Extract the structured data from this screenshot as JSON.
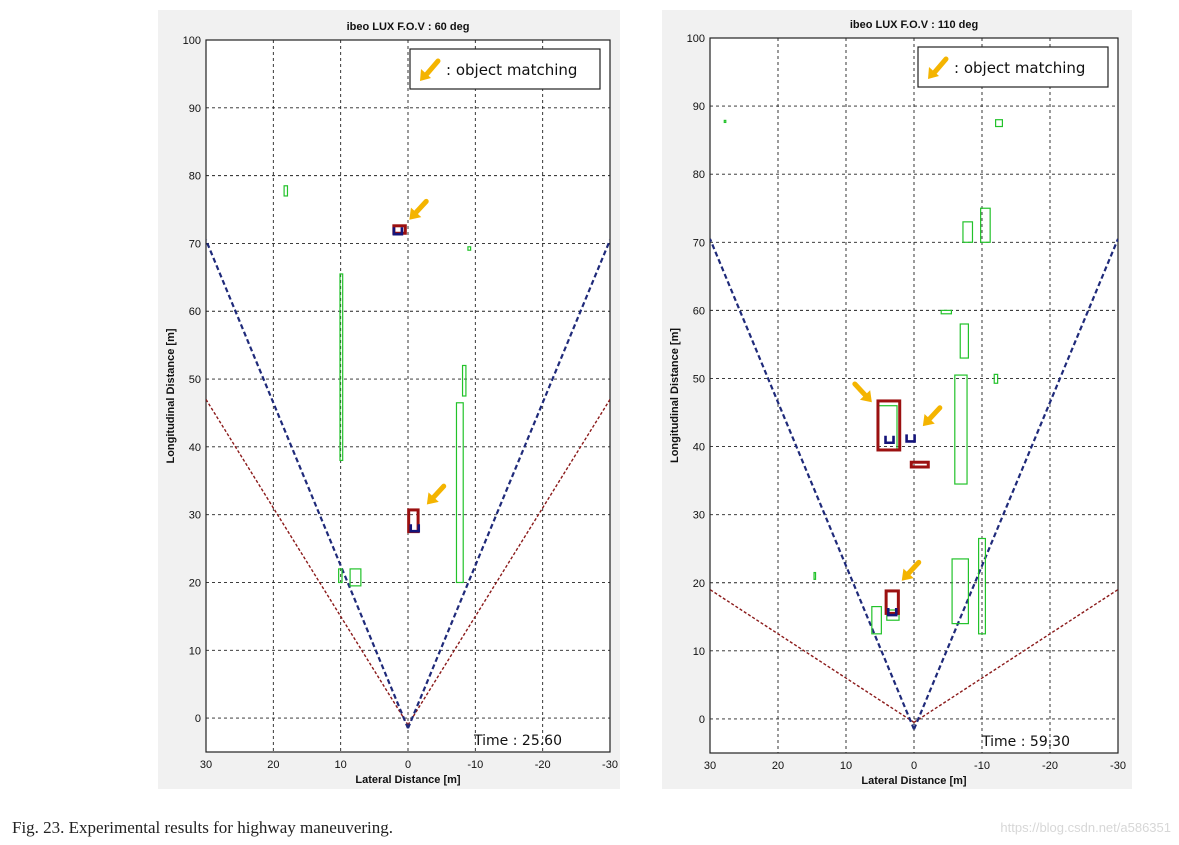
{
  "figure": {
    "caption": "Fig. 23.  Experimental results for highway maneuvering.",
    "watermark": "https://blog.csdn.net/a586351"
  },
  "colors": {
    "grid": "#222222",
    "fov_boundary": "#1f2a7a",
    "sensor_fov": "#8b1a1a",
    "raw_object": "#22c22a",
    "tracked_object": "#9b1010",
    "ego_marker": "#14147a",
    "arrow": "#f4b400",
    "magenta": "#b05cc8"
  },
  "chart_data": [
    {
      "type": "scatter",
      "title": "ibeo LUX F.O.V : 60 deg",
      "xlabel": "Lateral Distance [m]",
      "ylabel": "Longitudinal Distance [m]",
      "xlim": [
        30,
        -30
      ],
      "ylim": [
        -5,
        100
      ],
      "xticks": [
        30,
        20,
        10,
        0,
        -10,
        -20,
        -30
      ],
      "yticks": [
        0,
        10,
        20,
        30,
        40,
        50,
        60,
        70,
        80,
        90,
        100
      ],
      "grid": true,
      "legend": {
        "text": ": object matching",
        "placement": "top-right"
      },
      "time_label": "Time : 25.60",
      "sensor_fov_deg": 60,
      "fov_boundary_lines": [
        {
          "name": "left-boundary",
          "points": [
            [
              0,
              -1.5
            ],
            [
              30,
              70.5
            ]
          ]
        },
        {
          "name": "right-boundary",
          "points": [
            [
              0,
              -1.5
            ],
            [
              -30,
              70.5
            ]
          ]
        }
      ],
      "sensor_fov_lines": [
        {
          "name": "left-fov",
          "points": [
            [
              0,
              -1
            ],
            [
              30,
              47
            ]
          ]
        },
        {
          "name": "right-fov",
          "points": [
            [
              0,
              -1
            ],
            [
              -30,
              47
            ]
          ]
        }
      ],
      "raw_objects": [
        {
          "x": [
            -7.2,
            -8.2
          ],
          "y": [
            20,
            46.5
          ]
        },
        {
          "x": [
            -8.1,
            -8.6
          ],
          "y": [
            47.5,
            52
          ]
        },
        {
          "x": [
            9.7,
            10.1
          ],
          "y": [
            38,
            65.5
          ]
        },
        {
          "x": [
            7,
            8.6
          ],
          "y": [
            19.5,
            22
          ]
        },
        {
          "x": [
            10.3,
            9.8
          ],
          "y": [
            20,
            22
          ]
        },
        {
          "x": [
            18.4,
            17.9
          ],
          "y": [
            77,
            78.5
          ]
        },
        {
          "x": [
            -8.9,
            -9.3
          ],
          "y": [
            69,
            69.5
          ]
        }
      ],
      "tracked_objects": [
        {
          "x": [
            -0.1,
            -1.5
          ],
          "y": [
            27.5,
            30.7
          ]
        },
        {
          "x": [
            0.4,
            2.1
          ],
          "y": [
            71.5,
            72.6
          ]
        }
      ],
      "ego_markers": [
        {
          "x": -1,
          "y": 28
        },
        {
          "x": 1.5,
          "y": 71.8
        }
      ],
      "arrows": [
        {
          "tip": [
            -2.8,
            31.5
          ],
          "dir": [
            -1.3,
            1.4
          ]
        },
        {
          "tip": [
            -0.2,
            73.5
          ],
          "dir": [
            -1.3,
            1.4
          ]
        }
      ]
    },
    {
      "type": "scatter",
      "title": "ibeo LUX F.O.V : 110 deg",
      "xlabel": "Lateral Distance [m]",
      "ylabel": "Longitudinal Distance [m]",
      "xlim": [
        30,
        -30
      ],
      "ylim": [
        -5,
        100
      ],
      "xticks": [
        30,
        20,
        10,
        0,
        -10,
        -20,
        -30
      ],
      "yticks": [
        0,
        10,
        20,
        30,
        40,
        50,
        60,
        70,
        80,
        90,
        100
      ],
      "grid": true,
      "legend": {
        "text": ": object matching",
        "placement": "top-right"
      },
      "time_label": "Time : 59.30",
      "sensor_fov_deg": 110,
      "fov_boundary_lines": [
        {
          "name": "left-boundary",
          "points": [
            [
              0,
              -1.5
            ],
            [
              30,
              70.5
            ]
          ]
        },
        {
          "name": "right-boundary",
          "points": [
            [
              0,
              -1.5
            ],
            [
              -30,
              70.5
            ]
          ]
        }
      ],
      "sensor_fov_lines": [
        {
          "name": "left-fov",
          "points": [
            [
              0,
              -0.5
            ],
            [
              30,
              19
            ]
          ]
        },
        {
          "name": "right-fov",
          "points": [
            [
              0,
              -0.5
            ],
            [
              -30,
              19
            ]
          ]
        }
      ],
      "raw_objects": [
        {
          "x": [
            -5.6,
            -8
          ],
          "y": [
            14,
            23.5
          ]
        },
        {
          "x": [
            -9.5,
            -10.5
          ],
          "y": [
            12.5,
            26.5
          ]
        },
        {
          "x": [
            -6,
            -7.8
          ],
          "y": [
            34.5,
            50.5
          ]
        },
        {
          "x": [
            -6.8,
            -8
          ],
          "y": [
            53,
            58
          ]
        },
        {
          "x": [
            -9.8,
            -11.2
          ],
          "y": [
            70,
            75
          ]
        },
        {
          "x": [
            -7.2,
            -8.6
          ],
          "y": [
            70,
            73
          ]
        },
        {
          "x": [
            5.2,
            2.5
          ],
          "y": [
            39.5,
            46
          ]
        },
        {
          "x": [
            6.2,
            4.8
          ],
          "y": [
            12.5,
            16.5
          ]
        },
        {
          "x": [
            2.2,
            4
          ],
          "y": [
            14.5,
            16
          ]
        },
        {
          "x": [
            -12,
            -13
          ],
          "y": [
            87,
            88
          ]
        },
        {
          "x": [
            -11.8,
            -12.3
          ],
          "y": [
            49.3,
            50.6
          ]
        },
        {
          "x": [
            -4,
            -5.5
          ],
          "y": [
            59.5,
            60
          ]
        },
        {
          "x": [
            14.5,
            14.7
          ],
          "y": [
            20.5,
            21.5
          ]
        },
        {
          "x": [
            27.7,
            27.9
          ],
          "y": [
            87.6,
            87.9
          ]
        }
      ],
      "tracked_objects": [
        {
          "x": [
            2.1,
            5.3
          ],
          "y": [
            39.5,
            46.7
          ]
        },
        {
          "x": [
            2.3,
            4.1
          ],
          "y": [
            15.5,
            18.8
          ]
        },
        {
          "x": [
            0.4,
            -2.1
          ],
          "y": [
            37,
            37.7
          ]
        }
      ],
      "ego_markers": [
        {
          "x": 3.6,
          "y": 41
        },
        {
          "x": 3.2,
          "y": 15.7
        },
        {
          "x": 0.5,
          "y": 41.2
        }
      ],
      "arrows": [
        {
          "tip": [
            6.2,
            46.5
          ],
          "dir": [
            1.3,
            1.4
          ]
        },
        {
          "tip": [
            -1.3,
            43
          ],
          "dir": [
            -1.3,
            1.4
          ]
        },
        {
          "tip": [
            1.8,
            20.3
          ],
          "dir": [
            -1.3,
            1.4
          ]
        }
      ]
    }
  ]
}
